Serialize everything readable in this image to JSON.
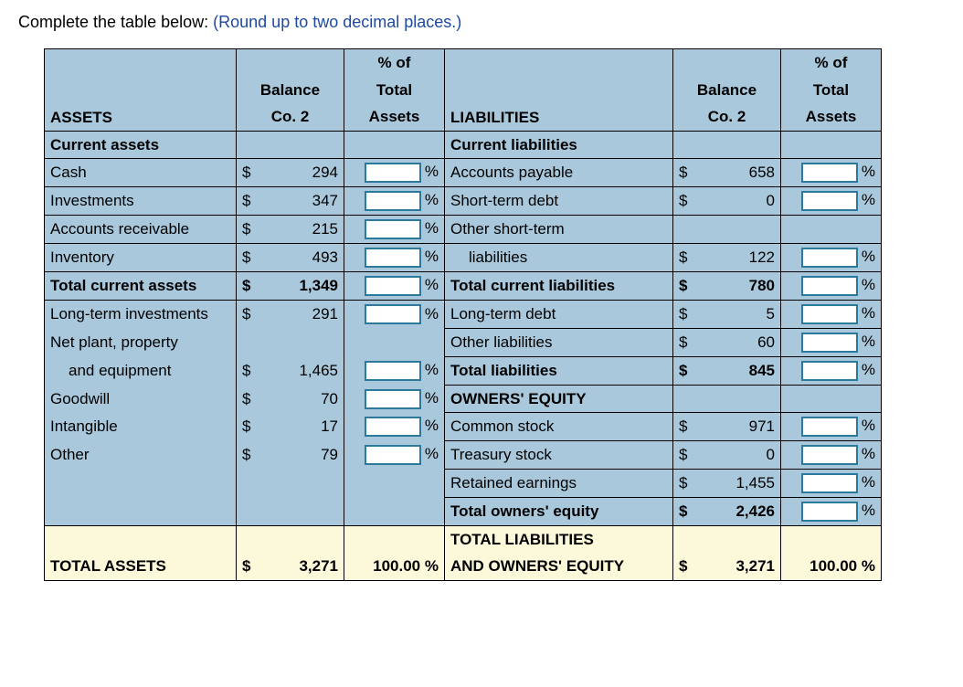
{
  "prompt": {
    "black": "Complete the table below:  ",
    "blue": "(Round up to two decimal places.)"
  },
  "headers": {
    "assets": "ASSETS",
    "liabilities": "LIABILITIES",
    "balance_line1": "Balance",
    "balance_line2": "Co. 2",
    "pct_line1": "% of",
    "pct_line2": "Total",
    "pct_line3": "Assets"
  },
  "assets": {
    "sec_current": "Current assets",
    "cash": {
      "label": "Cash",
      "val": "294"
    },
    "invest": {
      "label": "Investments",
      "val": "347"
    },
    "ar": {
      "label": "Accounts receivable",
      "val": "215"
    },
    "inv": {
      "label": "Inventory",
      "val": "493"
    },
    "tca": {
      "label": "Total current assets",
      "val": "1,349"
    },
    "lti": {
      "label": "Long-term investments",
      "val": "291"
    },
    "ppe_l1": "Net plant, property",
    "ppe_l2": "and equipment",
    "ppe_val": "1,465",
    "goodwill": {
      "label": "Goodwill",
      "val": "70"
    },
    "intang": {
      "label": "Intangible",
      "val": "17"
    },
    "other": {
      "label": "Other",
      "val": "79"
    },
    "total": {
      "label": "TOTAL ASSETS",
      "val": "3,271",
      "pct": "100.00"
    }
  },
  "liab": {
    "sec_current": "Current liabilities",
    "ap": {
      "label": "Accounts payable",
      "val": "658"
    },
    "std": {
      "label": "Short-term debt",
      "val": "0"
    },
    "ost_l1": "Other short-term",
    "ost_l2": "liabilities",
    "ost_val": "122",
    "tcl": {
      "label": "Total current liabilities",
      "val": "780"
    },
    "ltd": {
      "label": "Long-term debt",
      "val": "5"
    },
    "ol": {
      "label": "Other liabilities",
      "val": "60"
    },
    "tl": {
      "label": "Total liabilities",
      "val": "845"
    },
    "sec_oe": "OWNERS' EQUITY",
    "cs": {
      "label": "Common stock",
      "val": "971"
    },
    "ts": {
      "label": "Treasury stock",
      "val": "0"
    },
    "re": {
      "label": "Retained earnings",
      "val": "1,455"
    },
    "toe": {
      "label": "Total owners' equity",
      "val": "2,426"
    },
    "total_l1": "TOTAL LIABILITIES",
    "total_l2": "AND OWNERS' EQUITY",
    "total_val": "3,271",
    "total_pct": "100.00"
  },
  "sym": {
    "dollar": "$",
    "pct": "%"
  },
  "style": {
    "header_bg": "#a9c8dc",
    "total_bg": "#fbf9d9",
    "input_border": "#2b7a9b",
    "font_size": 17
  }
}
